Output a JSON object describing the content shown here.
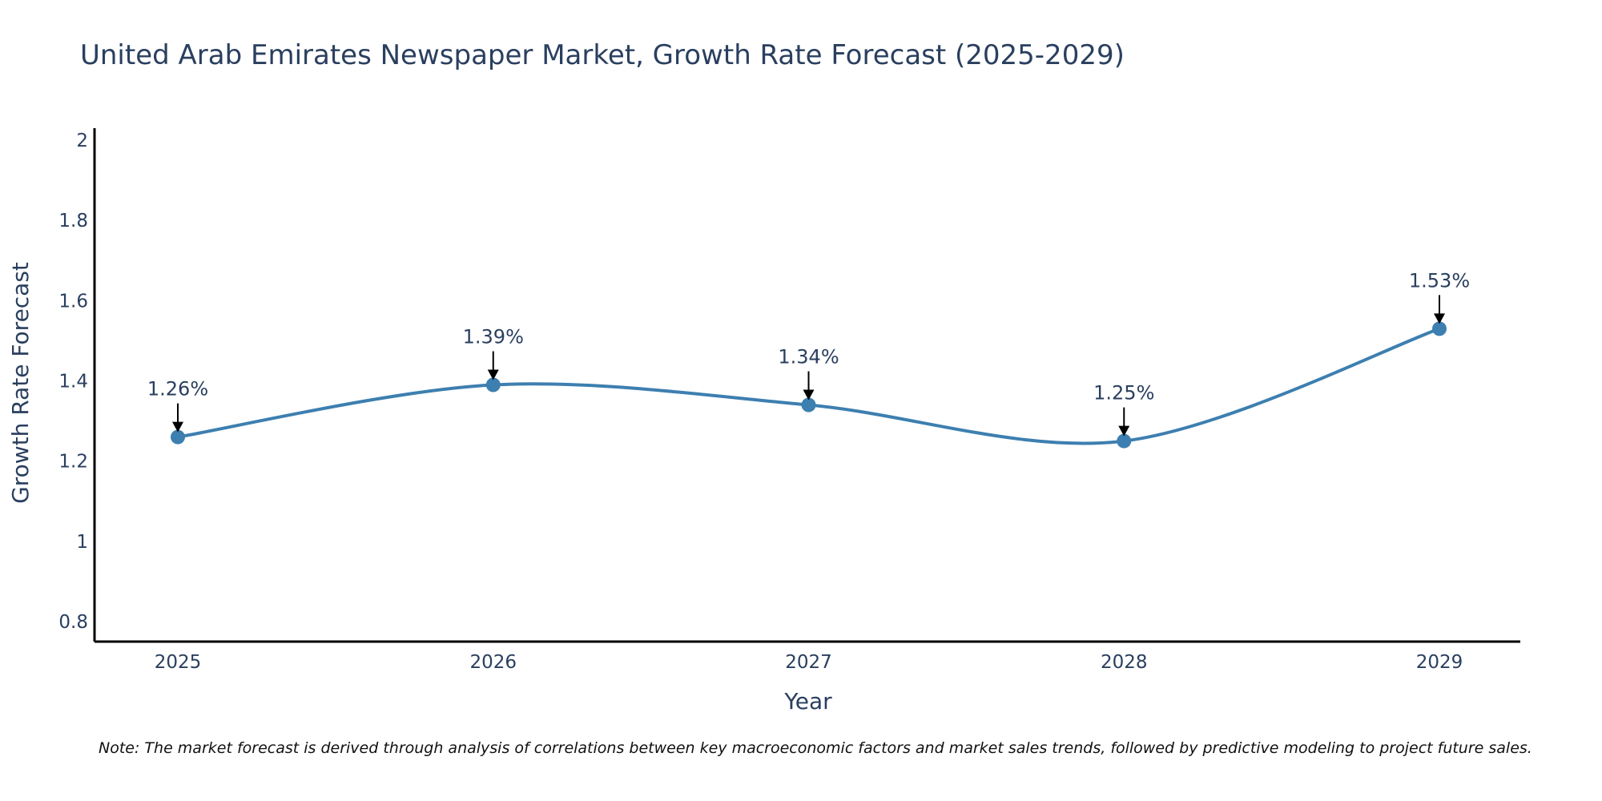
{
  "chart_data": {
    "type": "line",
    "title": "United Arab Emirates Newspaper Market, Growth Rate Forecast (2025-2029)",
    "xlabel": "Year",
    "ylabel": "Growth Rate Forecast",
    "categories": [
      "2025",
      "2026",
      "2027",
      "2028",
      "2029"
    ],
    "values": [
      1.26,
      1.39,
      1.34,
      1.25,
      1.53
    ],
    "data_labels": [
      "1.26%",
      "1.39%",
      "1.34%",
      "1.25%",
      "1.53%"
    ],
    "ylim": [
      0.75,
      2.03
    ],
    "yticks": [
      0.8,
      1,
      1.2,
      1.4,
      1.6,
      1.8,
      2
    ],
    "ytick_labels": [
      "0.8",
      "1",
      "1.2",
      "1.4",
      "1.6",
      "1.8",
      "2"
    ],
    "grid": false,
    "legend": "none",
    "line_color": "#3d7fb0",
    "note": "Note: The market forecast is derived through analysis of correlations between key macroeconomic factors and market sales trends, followed by predictive modeling to project future sales."
  }
}
